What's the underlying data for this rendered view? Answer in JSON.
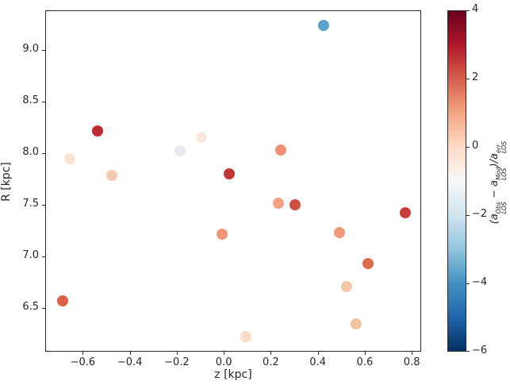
{
  "figure": {
    "background": "#ffffff",
    "spine_color": "#2b2b2b",
    "text_color": "#262626"
  },
  "chart_data": {
    "type": "scatter",
    "title": "",
    "xlabel": "z [kpc]",
    "ylabel": "R [kpc]",
    "xlim": [
      -0.76,
      0.84
    ],
    "ylim": [
      6.08,
      9.38
    ],
    "grid": false,
    "legend": "none",
    "marker_diameter_px": 14,
    "x_ticks": [
      {
        "v": -0.6,
        "label": "−0.6"
      },
      {
        "v": -0.4,
        "label": "−0.4"
      },
      {
        "v": -0.2,
        "label": "−0.2"
      },
      {
        "v": 0.0,
        "label": "0.0"
      },
      {
        "v": 0.2,
        "label": "0.2"
      },
      {
        "v": 0.4,
        "label": "0.4"
      },
      {
        "v": 0.6,
        "label": "0.6"
      },
      {
        "v": 0.8,
        "label": "0.8"
      }
    ],
    "y_ticks": [
      {
        "v": 6.5,
        "label": "6.5"
      },
      {
        "v": 7.0,
        "label": "7.0"
      },
      {
        "v": 7.5,
        "label": "7.5"
      },
      {
        "v": 8.0,
        "label": "8.0"
      },
      {
        "v": 8.5,
        "label": "8.5"
      },
      {
        "v": 9.0,
        "label": "9.0"
      }
    ],
    "points": [
      {
        "x": -0.69,
        "y": 6.58,
        "value": 1.8,
        "color": "#d95f49"
      },
      {
        "x": -0.66,
        "y": 7.95,
        "value": -0.2,
        "color": "#f8e1d5"
      },
      {
        "x": -0.54,
        "y": 8.22,
        "value": 2.6,
        "color": "#bb2d33"
      },
      {
        "x": -0.48,
        "y": 7.79,
        "value": 0.4,
        "color": "#f5cab2"
      },
      {
        "x": -0.19,
        "y": 8.03,
        "value": -0.8,
        "color": "#e5eaee"
      },
      {
        "x": -0.1,
        "y": 8.16,
        "value": -0.1,
        "color": "#f9e8df"
      },
      {
        "x": 0.02,
        "y": 7.81,
        "value": 2.4,
        "color": "#c23539"
      },
      {
        "x": -0.01,
        "y": 7.22,
        "value": 1.0,
        "color": "#ef9678"
      },
      {
        "x": 0.09,
        "y": 6.23,
        "value": 0.2,
        "color": "#f8dcc8"
      },
      {
        "x": 0.24,
        "y": 8.04,
        "value": 1.1,
        "color": "#ee9174"
      },
      {
        "x": 0.23,
        "y": 7.52,
        "value": 0.8,
        "color": "#f0a183"
      },
      {
        "x": 0.3,
        "y": 7.51,
        "value": 2.1,
        "color": "#cf4f43"
      },
      {
        "x": 0.42,
        "y": 9.24,
        "value": -3.2,
        "color": "#5ba1cc"
      },
      {
        "x": 0.49,
        "y": 7.24,
        "value": 0.9,
        "color": "#f09a7b"
      },
      {
        "x": 0.52,
        "y": 6.72,
        "value": 0.45,
        "color": "#f6c6a9"
      },
      {
        "x": 0.56,
        "y": 6.36,
        "value": 0.5,
        "color": "#f6c3a2"
      },
      {
        "x": 0.61,
        "y": 6.94,
        "value": 1.5,
        "color": "#dc6c4e"
      },
      {
        "x": 0.77,
        "y": 7.43,
        "value": 2.3,
        "color": "#c63d3b"
      }
    ],
    "colorbar": {
      "clim": [
        -6,
        4
      ],
      "colormap_name": "RdBu_r",
      "ticks": [
        {
          "v": 4,
          "label": "4"
        },
        {
          "v": 2,
          "label": "2"
        },
        {
          "v": 0,
          "label": "0"
        },
        {
          "v": -2,
          "label": "−2"
        },
        {
          "v": -4,
          "label": "−4"
        },
        {
          "v": -6,
          "label": "−6"
        }
      ],
      "label_plain": "(a_LOS^Obs − a_LOS^Mod)/a_LOS^err",
      "label_segments": [
        {
          "text": "(a",
          "sup": "Obs",
          "sub": "LOS"
        },
        {
          "text": " − a",
          "sup": "Mod",
          "sub": "LOS"
        },
        {
          "text": ")/a",
          "sup": "err",
          "sub": "LOS"
        }
      ],
      "gradient_stops": [
        "#67001f",
        "#b2182b",
        "#d6604d",
        "#f4a582",
        "#fddbc7",
        "#f7f7f7",
        "#d1e5f0",
        "#92c5de",
        "#4393c3",
        "#2166ac",
        "#053061"
      ]
    }
  }
}
